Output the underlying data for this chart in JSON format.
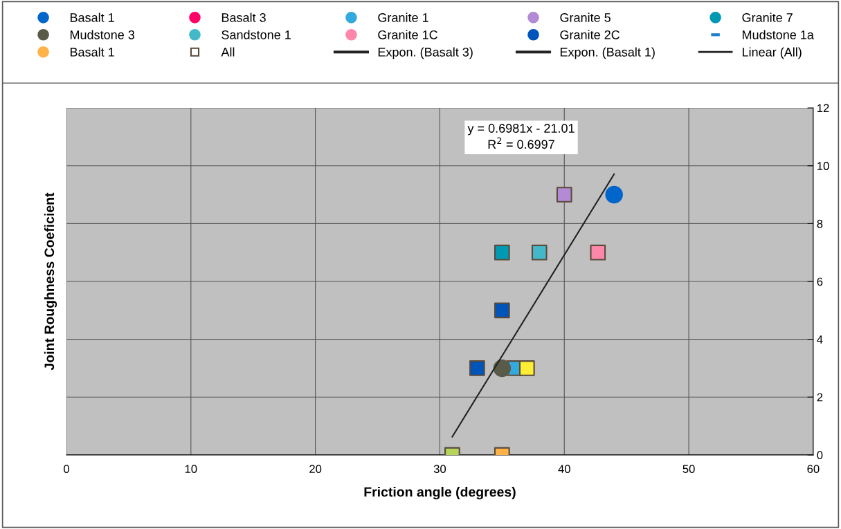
{
  "chart_data": {
    "type": "scatter",
    "xlabel": "Friction angle (degrees)",
    "ylabel": "Joint Roughness Coeficient",
    "xlim": [
      0,
      60
    ],
    "xticks": [
      0,
      10,
      20,
      30,
      40,
      50,
      60
    ],
    "ylim": [
      0,
      12
    ],
    "yticks": [
      0,
      2,
      4,
      6,
      8,
      10,
      12
    ],
    "grid": true,
    "legend": "top",
    "annotations": [
      "y = 0.6981x - 21.01\nR$^{2}$ = 0.6997"
    ],
    "series": [
      {
        "name": "Basalt 1",
        "color": "#0066cc",
        "marker": "circle",
        "x": [
          44
        ],
        "values": [
          9
        ]
      },
      {
        "name": "Basalt 3",
        "color": "#ff0066",
        "marker": "circle"
      },
      {
        "name": "Granite 1",
        "color": "#33aadd",
        "marker": "circle"
      },
      {
        "name": "Granite 5",
        "color": "#b38ad6",
        "marker": "circle"
      },
      {
        "name": "Granite 7",
        "color": "#0099b3",
        "marker": "circle"
      },
      {
        "name": "Mudstone 3",
        "color": "#5a5a48",
        "marker": "circle",
        "x": [
          35
        ],
        "values": [
          3
        ]
      },
      {
        "name": "Sandstone 1",
        "color": "#44b8c8",
        "marker": "circle"
      },
      {
        "name": "Granite 1C",
        "color": "#ff88aa",
        "marker": "circle"
      },
      {
        "name": "Granite 2C",
        "color": "#0055bb",
        "marker": "circle"
      },
      {
        "name": "Mudstone 1a",
        "color": "#1a7fd0",
        "marker": "dash"
      },
      {
        "name": "Basalt 1",
        "color": "#ffb347",
        "marker": "circle"
      },
      {
        "name": "All",
        "color": "#5a4a3a",
        "marker": "square",
        "x": [
          31,
          33,
          35,
          35,
          35,
          36,
          37,
          38,
          40,
          42.7
        ],
        "values": [
          0,
          3,
          0,
          5,
          7,
          3,
          3,
          7,
          9,
          7
        ],
        "colors": [
          "#b5d55a",
          "#0055bb",
          "#ffb347",
          "#0055bb",
          "#0099b3",
          "#33aadd",
          "#ffee33",
          "#44b8c8",
          "#b38ad6",
          "#ff88aa"
        ]
      },
      {
        "name": "Expon. (Basalt 3)",
        "type": "line",
        "color": "#222222"
      },
      {
        "name": "Expon. (Basalt 1)",
        "type": "line",
        "color": "#222222"
      },
      {
        "name": "Linear (All)",
        "type": "line",
        "color": "#222222",
        "x": [
          31,
          44
        ],
        "values": [
          0.63,
          9.71
        ]
      }
    ]
  }
}
